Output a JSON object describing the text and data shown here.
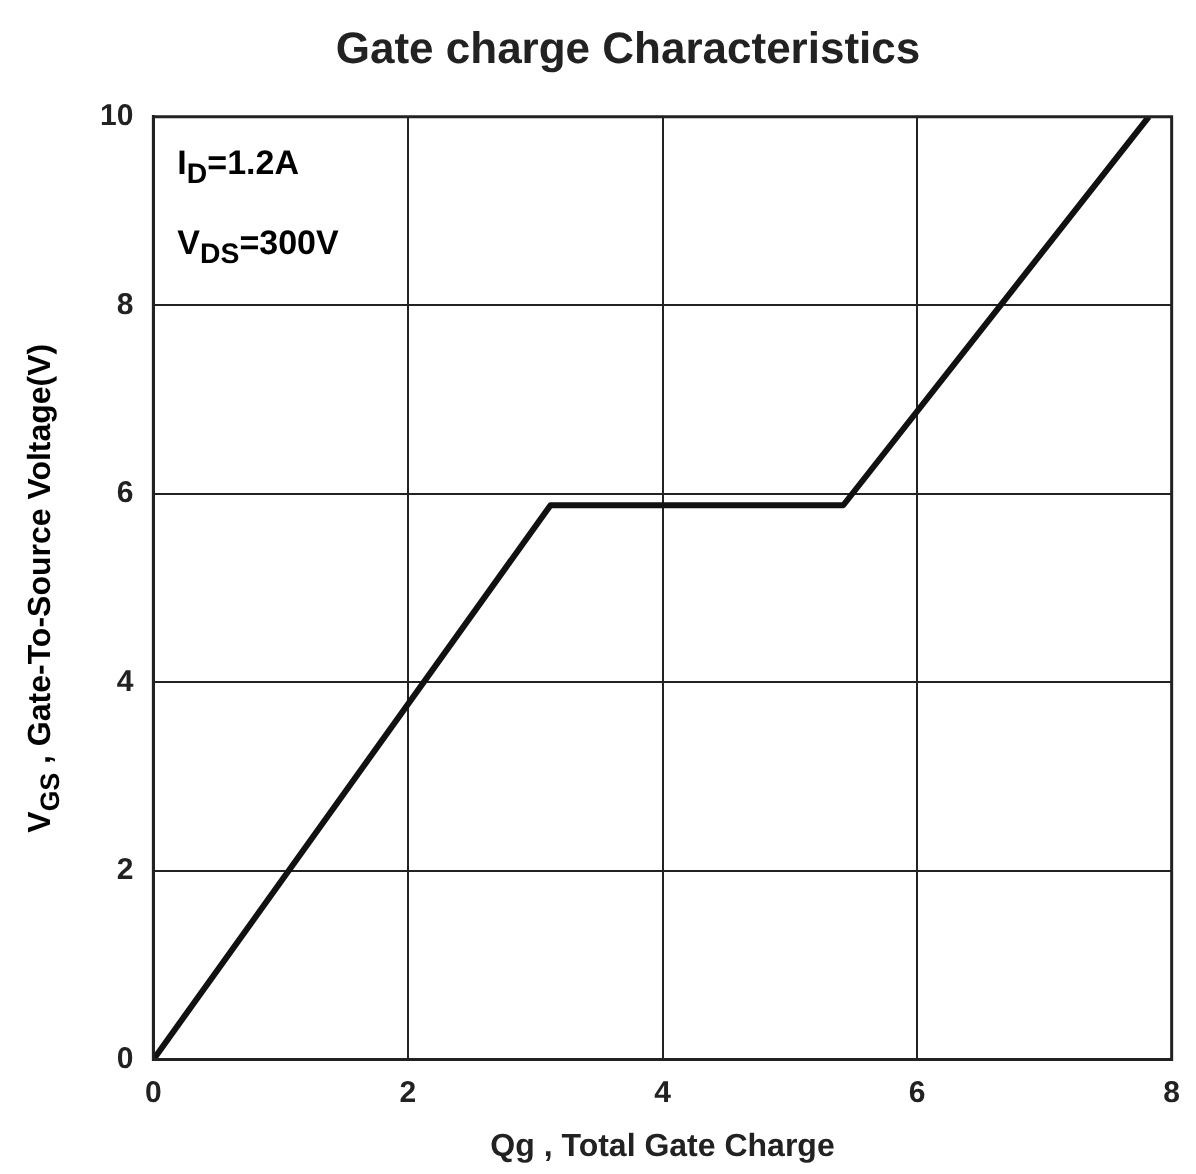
{
  "chart_data": {
    "type": "line",
    "title": "Gate charge Characteristics",
    "xlabel": "Qg , Total Gate Charge",
    "ylabel": "V$_{GS}$ , Gate-To-Source Voltage(V)",
    "annotations": [
      "I$_{D}$=1.2A",
      "V$_{DS}$=300V"
    ],
    "series": [
      {
        "color": "#111111",
        "x": [
          0,
          3.12,
          5.42,
          7.82
        ],
        "values": [
          0,
          5.88,
          5.88,
          10
        ]
      }
    ],
    "xlim": [
      0,
      8
    ],
    "xticks": [
      0,
      2,
      4,
      6,
      8
    ],
    "ylim": [
      0,
      10
    ],
    "yticks": [
      0,
      2,
      4,
      6,
      8,
      10
    ],
    "grid": true,
    "legend": false,
    "marker": "none",
    "line_style": "solid"
  }
}
